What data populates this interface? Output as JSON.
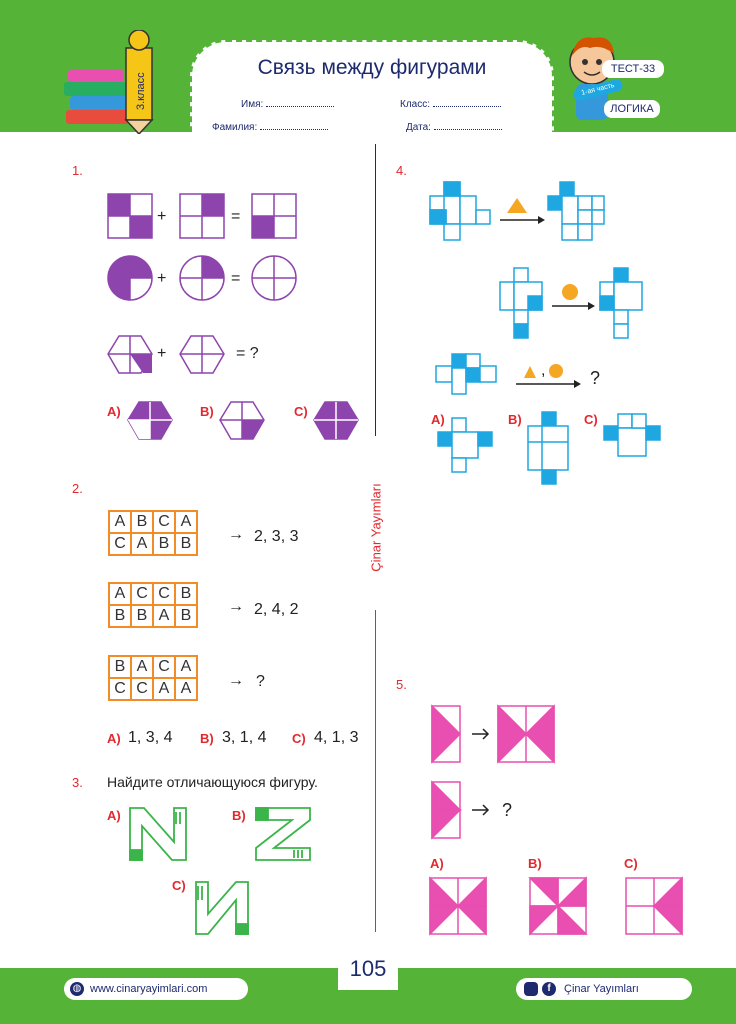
{
  "header": {
    "title": "Связь между фигурами",
    "name_label": "Имя:",
    "surname_label": "Фамилия:",
    "class_label": "Класс:",
    "date_label": "Дата:",
    "grade_badge": "3.класс",
    "test_label": "ТЕСТ-33",
    "part_label": "1-ая часть",
    "subject_label": "ЛОГИКА"
  },
  "side_label": "Çinar Yayımları",
  "q1": {
    "number": "1.",
    "plus": "+",
    "equals": "=",
    "question": "= ?",
    "options": [
      "A)",
      "B)",
      "C)"
    ]
  },
  "q2": {
    "number": "2.",
    "arrow": "→",
    "grids": [
      {
        "rows": [
          [
            "A",
            "B",
            "C",
            "A"
          ],
          [
            "C",
            "A",
            "B",
            "B"
          ]
        ],
        "result": "2, 3, 3"
      },
      {
        "rows": [
          [
            "A",
            "C",
            "C",
            "B"
          ],
          [
            "B",
            "B",
            "A",
            "B"
          ]
        ],
        "result": "2, 4, 2"
      },
      {
        "rows": [
          [
            "B",
            "A",
            "C",
            "A"
          ],
          [
            "C",
            "C",
            "A",
            "A"
          ]
        ],
        "result": "?"
      }
    ],
    "options": [
      {
        "label": "A)",
        "value": "1, 3, 4"
      },
      {
        "label": "B)",
        "value": "3, 1, 4"
      },
      {
        "label": "C)",
        "value": "4, 1, 3"
      }
    ]
  },
  "q3": {
    "number": "3.",
    "prompt": "Найдите отличающуюся фигуру.",
    "options": [
      "A)",
      "B)",
      "C)"
    ]
  },
  "q4": {
    "number": "4.",
    "comma": ",",
    "question": "?",
    "options": [
      "A)",
      "B)",
      "C)"
    ]
  },
  "q5": {
    "number": "5.",
    "question": "?",
    "options": [
      "A)",
      "B)",
      "C)"
    ]
  },
  "footer": {
    "website": "www.cinaryayimlari.com",
    "page_number": "105",
    "publisher": "Çinar Yayımları"
  },
  "colors": {
    "green": "#55b437",
    "purple": "#8e44ad",
    "orange": "#f28c28",
    "blue": "#1ea7e1",
    "pink": "#e84fb0",
    "red": "#e2292e",
    "navy": "#1d2a6e"
  }
}
